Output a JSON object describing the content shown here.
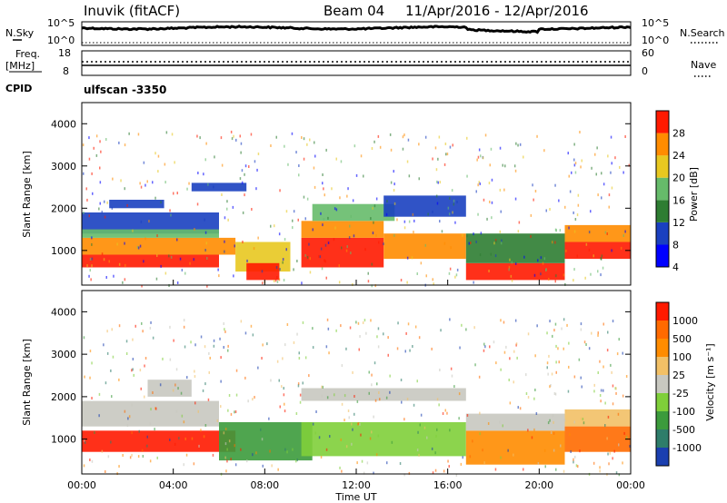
{
  "header": {
    "title": "Inuvik (fitACF)",
    "beam": "Beam 04",
    "date_range": "11/Apr/2016 - 12/Apr/2016"
  },
  "left_labels": {
    "nsky": "N.Sky",
    "freq": "Freq.",
    "freq_unit": "[MHz]",
    "cpid": "CPID"
  },
  "right_labels": {
    "nsearch": "N.Search",
    "nave": "Nave"
  },
  "cpid_text": "ulfscan -3350",
  "chart_data": [
    {
      "type": "line",
      "name": "noise",
      "left_ticks": [
        "10^5",
        "10^0"
      ],
      "right_ticks": [
        "10^5",
        "10^0"
      ]
    },
    {
      "type": "line",
      "name": "freq-nave",
      "left_ticks": [
        "18",
        "8"
      ],
      "right_ticks": [
        "60",
        "0"
      ]
    },
    {
      "type": "heatmap",
      "name": "power",
      "ylabel": "Slant Range [km]",
      "ylim": [
        180,
        4500
      ],
      "yticks": [
        1000,
        2000,
        3000,
        4000
      ],
      "colorbar_label": "Power [dB]",
      "colorbar_ticks": [
        "28",
        "24",
        "20",
        "16",
        "12",
        "8",
        "4"
      ],
      "colors": [
        "#0000ff",
        "#1a40c0",
        "#2e7d32",
        "#66bb6a",
        "#e8c820",
        "#ff8c00",
        "#ff1a00"
      ]
    },
    {
      "type": "heatmap",
      "name": "velocity",
      "ylabel": "Slant Range [km]",
      "ylim": [
        180,
        4500
      ],
      "yticks": [
        1000,
        2000,
        3000,
        4000
      ],
      "colorbar_label": "Velocity [m s⁻¹]",
      "colorbar_ticks": [
        "1000",
        "500",
        "100",
        "25",
        "-25",
        "-100",
        "-500",
        "-1000"
      ],
      "colors": [
        "#1a3fb0",
        "#2e7d6a",
        "#3c9b3c",
        "#7fcf3a",
        "#c8c8c0",
        "#f2c066",
        "#ff8c00",
        "#ff6a00",
        "#ff1a00"
      ],
      "xlabel": "Time UT",
      "xticks": [
        "00:00",
        "04:00",
        "08:00",
        "12:00",
        "16:00",
        "20:00",
        "00:00"
      ]
    }
  ]
}
